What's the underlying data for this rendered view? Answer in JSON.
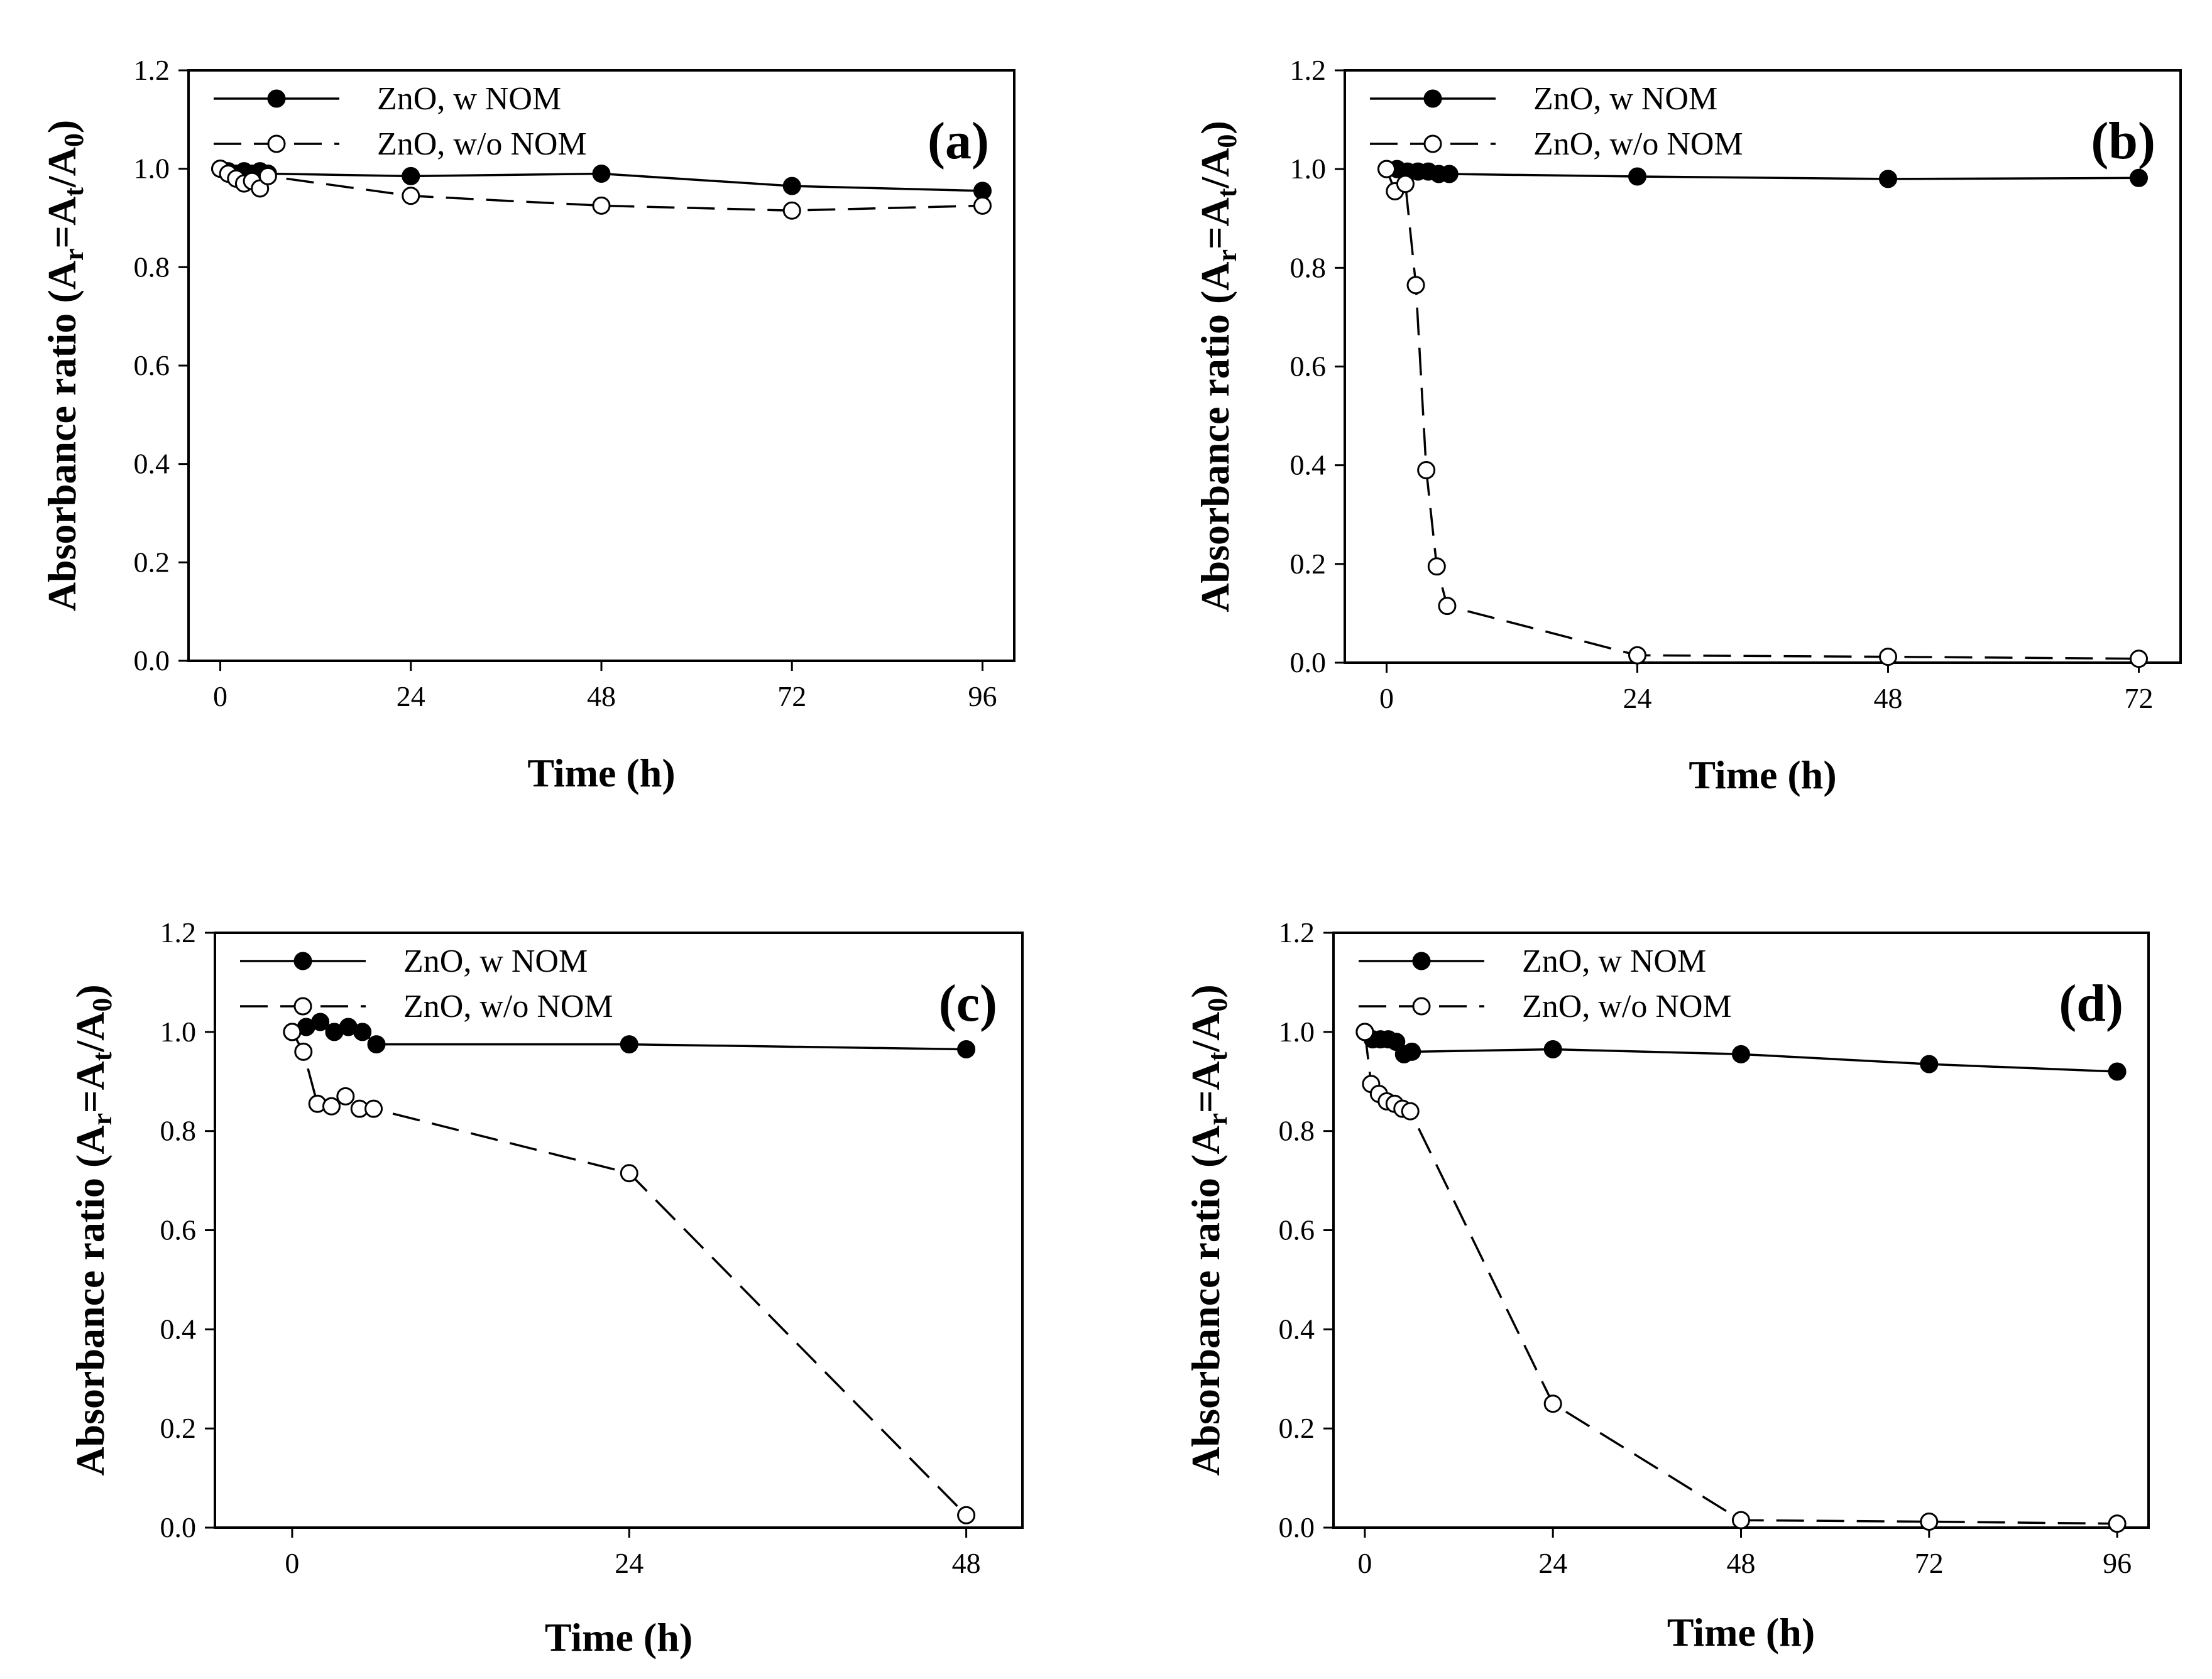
{
  "figure": {
    "legend": {
      "series_w": "ZnO, w NOM",
      "series_wo": "ZnO, w/o NOM"
    }
  },
  "chart_data": [
    {
      "type": "line",
      "panel": "(a)",
      "xlabel": "Time (h)",
      "ylabel": "Absorbance ratio (Ar=At/A0)",
      "ylabel_parts": {
        "main": "Absorbance ratio (A",
        "sub1": "r",
        "mid": "=A",
        "sub2": "t",
        "mid2": "/A",
        "sub3": "0",
        "end": ")"
      },
      "xlim": [
        -4,
        100
      ],
      "ylim": [
        0,
        1.2
      ],
      "xticks": [
        0,
        24,
        48,
        72,
        96
      ],
      "xtick_labels": [
        "0",
        "24",
        "48",
        "72",
        "96"
      ],
      "yticks": [
        0,
        0.2,
        0.4,
        0.6,
        0.8,
        1.0,
        1.2
      ],
      "ytick_labels": [
        "0.0",
        "0.2",
        "0.4",
        "0.6",
        "0.8",
        "1.0",
        "1.2"
      ],
      "legend_position": "top-left",
      "series": [
        {
          "name": "ZnO, w NOM",
          "marker": "filled-circle",
          "line": "solid",
          "x": [
            0,
            1,
            2,
            3,
            4,
            5,
            6,
            24,
            48,
            72,
            96
          ],
          "y": [
            1.0,
            0.995,
            0.99,
            0.995,
            0.99,
            0.995,
            0.99,
            0.985,
            0.99,
            0.965,
            0.955
          ]
        },
        {
          "name": "ZnO, w/o NOM",
          "marker": "open-circle",
          "line": "dashed",
          "x": [
            0,
            1,
            2,
            3,
            4,
            5,
            6,
            24,
            48,
            72,
            96
          ],
          "y": [
            1.0,
            0.99,
            0.98,
            0.97,
            0.975,
            0.96,
            0.985,
            0.945,
            0.925,
            0.915,
            0.925
          ]
        }
      ]
    },
    {
      "type": "line",
      "panel": "(b)",
      "xlabel": "Time (h)",
      "ylabel": "Absorbance ratio (Ar=At/A0)",
      "ylabel_parts": {
        "main": "Absorbance ratio (A",
        "sub1": "r",
        "mid": "=A",
        "sub2": "t",
        "mid2": "/A",
        "sub3": "0",
        "end": ")"
      },
      "xlim": [
        -4,
        76
      ],
      "ylim": [
        0,
        1.2
      ],
      "xticks": [
        0,
        24,
        48,
        72
      ],
      "xtick_labels": [
        "0",
        "24",
        "48",
        "72"
      ],
      "yticks": [
        0,
        0.2,
        0.4,
        0.6,
        0.8,
        1.0,
        1.2
      ],
      "ytick_labels": [
        "0.0",
        "0.2",
        "0.4",
        "0.6",
        "0.8",
        "1.0",
        "1.2"
      ],
      "legend_position": "top-left",
      "series": [
        {
          "name": "ZnO, w NOM",
          "marker": "filled-circle",
          "line": "solid",
          "x": [
            0,
            1,
            2,
            3,
            4,
            5,
            6,
            24,
            48,
            72
          ],
          "y": [
            1.0,
            1.0,
            0.995,
            0.995,
            0.995,
            0.99,
            0.99,
            0.985,
            0.98,
            0.982
          ]
        },
        {
          "name": "ZnO, w/o NOM",
          "marker": "open-circle",
          "line": "dashed",
          "x": [
            0,
            0.8,
            1.8,
            2.8,
            3.8,
            4.8,
            5.8,
            24,
            48,
            72
          ],
          "y": [
            1.0,
            0.955,
            0.97,
            0.765,
            0.39,
            0.195,
            0.115,
            0.015,
            0.012,
            0.008
          ]
        }
      ]
    },
    {
      "type": "line",
      "panel": "(c)",
      "xlabel": "Time (h)",
      "ylabel": "Absorbance ratio (Ar=At/A0)",
      "ylabel_parts": {
        "main": "Absorbance ratio (A",
        "sub1": "r",
        "mid": "=A",
        "sub2": "t",
        "mid2": "/A",
        "sub3": "0",
        "end": ")"
      },
      "xlim": [
        -5.5,
        52
      ],
      "ylim": [
        0,
        1.2
      ],
      "xticks": [
        0,
        24,
        48
      ],
      "xtick_labels": [
        "0",
        "24",
        "48"
      ],
      "yticks": [
        0,
        0.2,
        0.4,
        0.6,
        0.8,
        1.0,
        1.2
      ],
      "ytick_labels": [
        "0.0",
        "0.2",
        "0.4",
        "0.6",
        "0.8",
        "1.0",
        "1.2"
      ],
      "legend_position": "top-left",
      "series": [
        {
          "name": "ZnO, w NOM",
          "marker": "filled-circle",
          "line": "solid",
          "x": [
            0,
            1,
            2,
            3,
            4,
            5,
            6,
            24,
            48
          ],
          "y": [
            1.0,
            1.01,
            1.02,
            1.0,
            1.01,
            1.0,
            0.975,
            0.975,
            0.965
          ]
        },
        {
          "name": "ZnO, w/o NOM",
          "marker": "open-circle",
          "line": "dashed",
          "x": [
            0,
            0.8,
            1.8,
            2.8,
            3.8,
            4.8,
            5.8,
            24,
            48
          ],
          "y": [
            1.0,
            0.96,
            0.855,
            0.85,
            0.87,
            0.845,
            0.845,
            0.715,
            0.025
          ]
        }
      ]
    },
    {
      "type": "line",
      "panel": "(d)",
      "xlabel": "Time (h)",
      "ylabel": "Absorbance ratio (Ar=At/A0)",
      "ylabel_parts": {
        "main": "Absorbance ratio (A",
        "sub1": "r",
        "mid": "=A",
        "sub2": "t",
        "mid2": "/A",
        "sub3": "0",
        "end": ")"
      },
      "xlim": [
        -4,
        100
      ],
      "ylim": [
        0,
        1.2
      ],
      "xticks": [
        0,
        24,
        48,
        72,
        96
      ],
      "xtick_labels": [
        "0",
        "24",
        "48",
        "72",
        "96"
      ],
      "yticks": [
        0,
        0.2,
        0.4,
        0.6,
        0.8,
        1.0,
        1.2
      ],
      "ytick_labels": [
        "0.0",
        "0.2",
        "0.4",
        "0.6",
        "0.8",
        "1.0",
        "1.2"
      ],
      "legend_position": "top-left",
      "series": [
        {
          "name": "ZnO, w NOM",
          "marker": "filled-circle",
          "line": "solid",
          "x": [
            0,
            1,
            2,
            3,
            4,
            5,
            6,
            24,
            48,
            72,
            96
          ],
          "y": [
            1.0,
            0.985,
            0.985,
            0.985,
            0.98,
            0.955,
            0.96,
            0.965,
            0.955,
            0.935,
            0.92
          ]
        },
        {
          "name": "ZnO, w/o NOM",
          "marker": "open-circle",
          "line": "dashed",
          "x": [
            0,
            0.8,
            1.8,
            2.8,
            3.8,
            4.8,
            5.8,
            24,
            48,
            72,
            96
          ],
          "y": [
            1.0,
            0.895,
            0.875,
            0.86,
            0.855,
            0.845,
            0.84,
            0.25,
            0.015,
            0.012,
            0.008
          ]
        }
      ]
    }
  ]
}
